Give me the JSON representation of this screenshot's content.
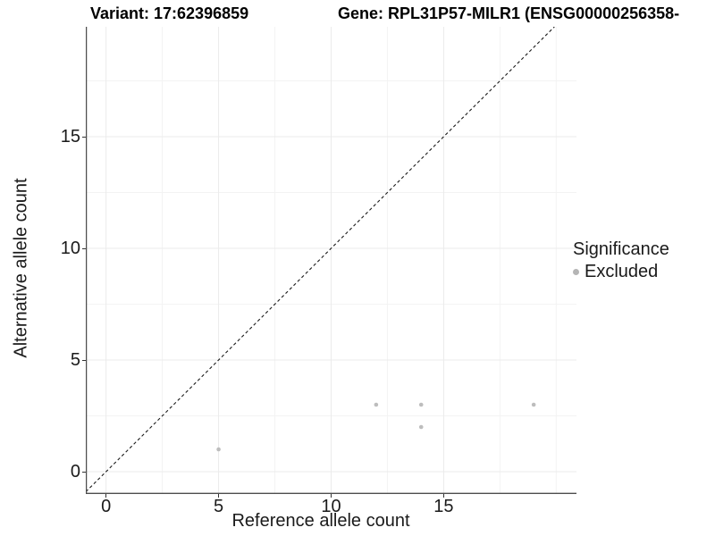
{
  "chart_data": {
    "type": "scatter",
    "title_left": "Variant: 17:62396859",
    "title_right": "Gene: RPL31P57-MILR1 (ENSG00000256358-",
    "xlabel": "Reference allele count",
    "ylabel": "Alternative allele count",
    "xlim": [
      -0.9,
      20.9
    ],
    "ylim": [
      -1.0,
      19.92
    ],
    "x_major_ticks": [
      0,
      5,
      10,
      15
    ],
    "x_minor_ticks": [
      2.5,
      7.5,
      12.5,
      17.5,
      20
    ],
    "y_major_ticks": [
      0,
      5,
      10,
      15
    ],
    "y_minor_ticks": [
      2.5,
      7.5,
      12.5,
      17.5
    ],
    "grid": true,
    "identity_line": {
      "style": "dashed",
      "color": "#1a1a1a",
      "equation": "y = x"
    },
    "series": [
      {
        "name": "Excluded",
        "color": "#bdbdbd",
        "points": [
          [
            5,
            1
          ],
          [
            12,
            3
          ],
          [
            14,
            2
          ],
          [
            14,
            3
          ],
          [
            19,
            3
          ]
        ]
      }
    ],
    "legend": {
      "position": "right",
      "title": "Significance",
      "entries": [
        {
          "label": "Excluded",
          "color": "#b5b5b5"
        }
      ]
    },
    "colors": {
      "major_grid": "#ebebeb",
      "minor_grid": "#f3f3f3",
      "axis_line": "#4d4d4d",
      "point": "#bdbdbd"
    }
  }
}
